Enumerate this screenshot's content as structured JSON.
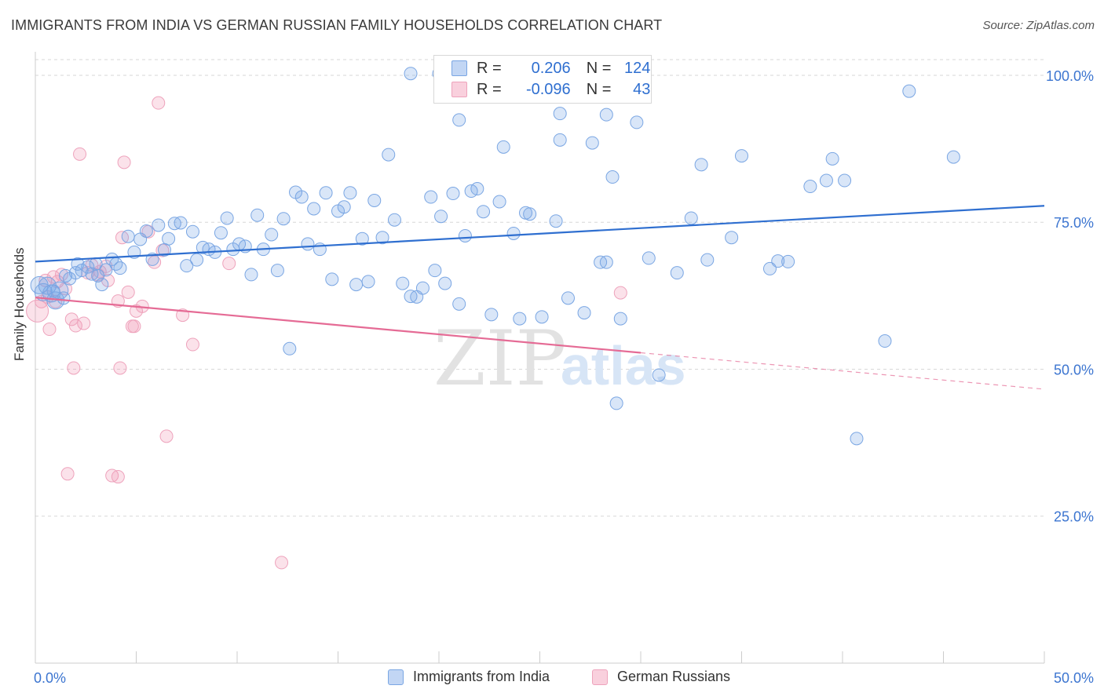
{
  "header": {
    "title": "IMMIGRANTS FROM INDIA VS GERMAN RUSSIAN FAMILY HOUSEHOLDS CORRELATION CHART",
    "source": "Source: ZipAtlas.com"
  },
  "watermark": {
    "zip": "ZIP",
    "atlas": "atlas"
  },
  "legend": {
    "rows": [
      {
        "r_label": "R =",
        "r_value": "0.206",
        "n_label": "N =",
        "n_value": "124",
        "color": "#7fb0ee"
      },
      {
        "r_label": "R =",
        "r_value": "-0.096",
        "n_label": "N =",
        "n_value": "43",
        "color": "#f2a0bb"
      }
    ]
  },
  "bottom_legend": {
    "india": "Immigrants from India",
    "german": "German Russians"
  },
  "chart_data": {
    "type": "scatter",
    "title": "IMMIGRANTS FROM INDIA VS GERMAN RUSSIAN FAMILY HOUSEHOLDS CORRELATION CHART",
    "ylabel": "Family Households",
    "xlabel": "",
    "xlim": [
      0,
      50
    ],
    "ylim": [
      0,
      104
    ],
    "x_tick_labels": [
      "0.0%",
      "50.0%"
    ],
    "y_ticks": [
      25,
      50,
      75,
      100
    ],
    "y_tick_labels": [
      "25.0%",
      "50.0%",
      "75.0%",
      "100.0%"
    ],
    "grid": true,
    "legend_position": "top-center",
    "colors": {
      "india_fill": "rgba(120,165,230,0.28)",
      "india_stroke": "#7aa6e3",
      "india_line": "#2f6fd0",
      "german_fill": "rgba(242,150,180,0.28)",
      "german_stroke": "#eea3bc",
      "german_line": "#e56b95",
      "axis_text": "#3c75d0",
      "grid": "#d7d7d7"
    },
    "series": [
      {
        "name": "Immigrants from India",
        "trend": {
          "x0": 0,
          "y0": 68.3,
          "x1": 50,
          "y1": 77.8
        },
        "points": [
          [
            0.2,
            64.3
          ],
          [
            0.4,
            63.1
          ],
          [
            0.6,
            64.2
          ],
          [
            0.8,
            62.9
          ],
          [
            1.0,
            61.7
          ],
          [
            1.2,
            63.4
          ],
          [
            1.5,
            65.9
          ],
          [
            1.7,
            65.4
          ],
          [
            2.0,
            66.4
          ],
          [
            2.3,
            66.8
          ],
          [
            2.6,
            67.4
          ],
          [
            2.8,
            66.2
          ],
          [
            3.0,
            67.9
          ],
          [
            3.3,
            64.4
          ],
          [
            3.5,
            66.9
          ],
          [
            3.8,
            68.7
          ],
          [
            4.0,
            67.9
          ],
          [
            4.2,
            67.2
          ],
          [
            4.6,
            72.6
          ],
          [
            4.9,
            69.9
          ],
          [
            5.2,
            72.1
          ],
          [
            5.5,
            73.5
          ],
          [
            5.8,
            68.7
          ],
          [
            6.1,
            74.5
          ],
          [
            6.4,
            70.3
          ],
          [
            6.6,
            72.2
          ],
          [
            6.9,
            74.8
          ],
          [
            7.2,
            74.9
          ],
          [
            7.5,
            67.6
          ],
          [
            7.8,
            73.4
          ],
          [
            8.0,
            68.6
          ],
          [
            8.3,
            70.7
          ],
          [
            8.6,
            70.4
          ],
          [
            8.9,
            69.9
          ],
          [
            9.2,
            73.2
          ],
          [
            9.5,
            75.7
          ],
          [
            9.8,
            70.4
          ],
          [
            10.1,
            71.3
          ],
          [
            10.4,
            70.9
          ],
          [
            10.7,
            66.1
          ],
          [
            11.0,
            76.2
          ],
          [
            11.3,
            70.4
          ],
          [
            11.7,
            72.9
          ],
          [
            12.0,
            66.8
          ],
          [
            12.3,
            75.6
          ],
          [
            12.6,
            53.5
          ],
          [
            12.9,
            80.1
          ],
          [
            13.2,
            79.3
          ],
          [
            13.5,
            71.3
          ],
          [
            13.8,
            77.3
          ],
          [
            14.1,
            70.4
          ],
          [
            14.4,
            80.0
          ],
          [
            14.7,
            65.3
          ],
          [
            15.0,
            76.9
          ],
          [
            15.3,
            77.6
          ],
          [
            15.6,
            80.0
          ],
          [
            15.9,
            64.4
          ],
          [
            16.2,
            72.2
          ],
          [
            16.5,
            64.9
          ],
          [
            16.8,
            78.7
          ],
          [
            17.2,
            72.4
          ],
          [
            17.5,
            86.5
          ],
          [
            17.8,
            75.4
          ],
          [
            18.2,
            64.6
          ],
          [
            18.6,
            62.4
          ],
          [
            18.9,
            62.3
          ],
          [
            19.2,
            63.8
          ],
          [
            19.6,
            79.3
          ],
          [
            19.8,
            66.8
          ],
          [
            20.1,
            76.0
          ],
          [
            20.3,
            64.6
          ],
          [
            20.7,
            79.9
          ],
          [
            21.0,
            61.1
          ],
          [
            21.3,
            72.7
          ],
          [
            21.6,
            80.3
          ],
          [
            21.9,
            80.7
          ],
          [
            22.2,
            76.8
          ],
          [
            22.6,
            59.3
          ],
          [
            23.0,
            78.5
          ],
          [
            23.2,
            87.8
          ],
          [
            23.7,
            73.1
          ],
          [
            24.0,
            58.6
          ],
          [
            24.3,
            76.6
          ],
          [
            24.5,
            76.4
          ],
          [
            25.1,
            58.9
          ],
          [
            25.8,
            75.2
          ],
          [
            26.0,
            89.0
          ],
          [
            26.4,
            62.1
          ],
          [
            27.2,
            59.6
          ],
          [
            27.6,
            88.5
          ],
          [
            28.0,
            68.2
          ],
          [
            28.3,
            68.2
          ],
          [
            28.6,
            82.7
          ],
          [
            28.8,
            44.2
          ],
          [
            29.0,
            58.6
          ],
          [
            30.4,
            68.9
          ],
          [
            30.9,
            49.0
          ],
          [
            31.8,
            66.4
          ],
          [
            32.5,
            75.7
          ],
          [
            33.0,
            84.8
          ],
          [
            33.3,
            68.6
          ],
          [
            34.5,
            72.4
          ],
          [
            35.0,
            86.3
          ],
          [
            36.4,
            67.1
          ],
          [
            36.8,
            68.4
          ],
          [
            37.3,
            68.3
          ],
          [
            38.4,
            81.1
          ],
          [
            39.2,
            82.1
          ],
          [
            39.5,
            85.8
          ],
          [
            40.1,
            82.1
          ],
          [
            40.7,
            38.2
          ],
          [
            42.1,
            54.8
          ],
          [
            43.3,
            97.3
          ],
          [
            45.5,
            86.1
          ],
          [
            18.6,
            100.3
          ],
          [
            20.0,
            100.3
          ],
          [
            26.0,
            93.5
          ],
          [
            28.3,
            93.3
          ],
          [
            29.8,
            92.0
          ],
          [
            21.0,
            92.4
          ],
          [
            0.9,
            63.3
          ],
          [
            1.4,
            62.1
          ],
          [
            2.1,
            67.9
          ],
          [
            3.1,
            65.9
          ]
        ],
        "sizes_note": "few larger bubbles near x≈0"
      },
      {
        "name": "German Russians",
        "trend": {
          "x0": 0,
          "y0": 62.2,
          "x1": 30.0,
          "y1": 52.8
        },
        "trend_dashed_to": {
          "x": 50,
          "y": 46.6
        },
        "points": [
          [
            0.1,
            59.9
          ],
          [
            0.3,
            61.5
          ],
          [
            0.5,
            65.1
          ],
          [
            0.7,
            56.8
          ],
          [
            0.9,
            65.7
          ],
          [
            1.1,
            64.9
          ],
          [
            1.3,
            66.1
          ],
          [
            1.5,
            63.7
          ],
          [
            1.6,
            32.2
          ],
          [
            1.9,
            50.2
          ],
          [
            2.0,
            57.4
          ],
          [
            2.2,
            86.6
          ],
          [
            2.4,
            57.8
          ],
          [
            2.8,
            67.7
          ],
          [
            3.1,
            66.1
          ],
          [
            3.2,
            66.6
          ],
          [
            3.6,
            65.1
          ],
          [
            3.8,
            31.9
          ],
          [
            4.1,
            61.6
          ],
          [
            4.2,
            50.2
          ],
          [
            4.3,
            72.4
          ],
          [
            4.4,
            85.2
          ],
          [
            4.6,
            63.1
          ],
          [
            4.8,
            57.3
          ],
          [
            4.9,
            57.3
          ],
          [
            5.0,
            59.9
          ],
          [
            5.3,
            60.7
          ],
          [
            5.6,
            73.4
          ],
          [
            5.9,
            68.2
          ],
          [
            6.1,
            95.3
          ],
          [
            6.3,
            70.2
          ],
          [
            6.5,
            38.6
          ],
          [
            7.3,
            59.2
          ],
          [
            7.8,
            54.2
          ],
          [
            9.6,
            68.0
          ],
          [
            12.2,
            17.1
          ],
          [
            4.1,
            31.7
          ],
          [
            1.0,
            61.5
          ],
          [
            3.5,
            67.5
          ],
          [
            29.0,
            63.0
          ],
          [
            0.6,
            62.3
          ],
          [
            1.8,
            58.5
          ],
          [
            2.6,
            66.4
          ]
        ]
      }
    ]
  }
}
